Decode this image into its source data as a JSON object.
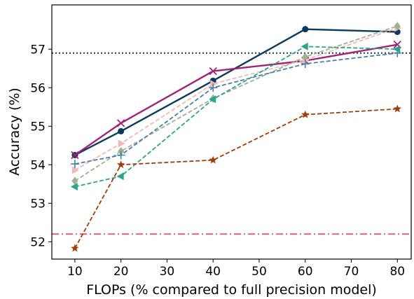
{
  "chart_data": {
    "type": "line",
    "xlabel": "FLOPs (% compared to full precision model)",
    "ylabel": "Accuracy (%)",
    "x_ticks": [
      10,
      20,
      30,
      40,
      50,
      60,
      70,
      80
    ],
    "y_ticks": [
      52,
      53,
      54,
      55,
      56,
      57
    ],
    "xlim": [
      5,
      83
    ],
    "ylim": [
      51.55,
      58.15
    ],
    "grid": false,
    "legend": "none",
    "x": [
      10,
      20,
      40,
      60,
      80
    ],
    "reference_lines": [
      {
        "y": 56.9,
        "style": "dotted",
        "color": "#0b3a5e"
      },
      {
        "y": 52.2,
        "style": "dashdot",
        "color": "#d9627a"
      }
    ],
    "series": [
      {
        "color": "#0b3a5e",
        "dash": "solid",
        "marker": "circle",
        "values": [
          54.25,
          54.87,
          56.18,
          57.52,
          57.45
        ]
      },
      {
        "color": "#a2227a",
        "dash": "solid",
        "marker": "x",
        "values": [
          54.25,
          55.08,
          56.43,
          56.7,
          57.12
        ]
      },
      {
        "color": "#f2b8b5",
        "dash": "dashed",
        "marker": "triangle-right",
        "values": [
          53.86,
          54.55,
          56.1,
          56.72,
          57.55
        ]
      },
      {
        "color": "#9fb18e",
        "dash": "dashed",
        "marker": "diamond",
        "values": [
          53.58,
          54.35,
          55.72,
          56.8,
          57.6
        ]
      },
      {
        "color": "#4a7fad",
        "dash": "dashed",
        "marker": "plus",
        "values": [
          54.02,
          54.25,
          56.0,
          56.62,
          56.9
        ]
      },
      {
        "color": "#2aa585",
        "dash": "dashed",
        "marker": "triangle-left",
        "values": [
          53.43,
          53.7,
          55.7,
          57.07,
          57.0
        ]
      },
      {
        "color": "#a33b0d",
        "dash": "dashed",
        "marker": "star",
        "values": [
          51.83,
          54.0,
          54.12,
          55.3,
          55.45
        ]
      }
    ]
  }
}
